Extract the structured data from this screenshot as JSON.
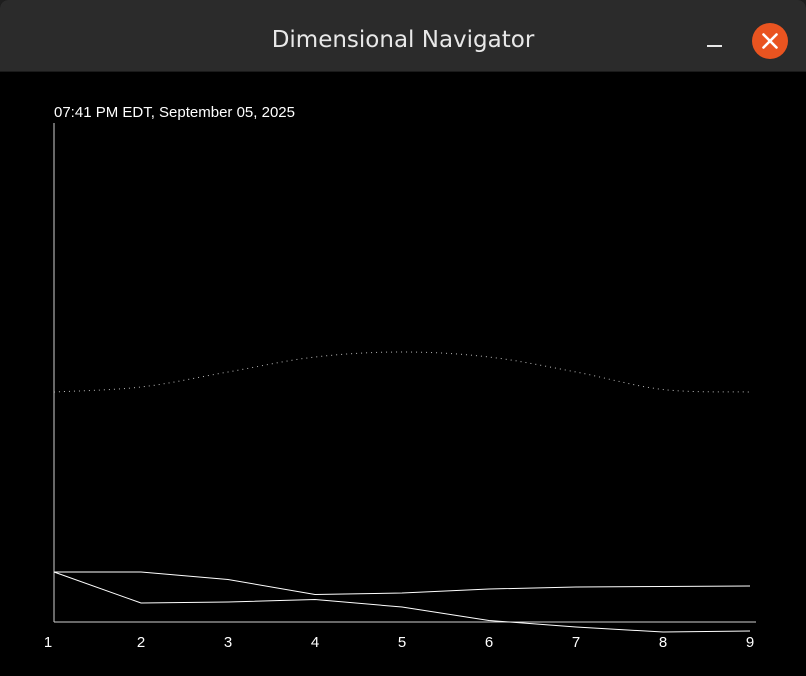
{
  "window": {
    "title": "Dimensional Navigator",
    "minimize_icon": "minimize-icon",
    "close_icon": "close-icon",
    "accent_color": "#e95420"
  },
  "chart_data": {
    "type": "line",
    "title": "07:41 PM EDT, September 05, 2025",
    "x": [
      1,
      2,
      3,
      4,
      5,
      6,
      7,
      8,
      9
    ],
    "ylim": [
      0,
      1
    ],
    "grid": false,
    "series": [
      {
        "style": "dotted",
        "color": "#bbbbbb",
        "values": [
          0.46,
          0.47,
          0.5,
          0.53,
          0.54,
          0.53,
          0.5,
          0.465,
          0.46
        ]
      },
      {
        "style": "solid",
        "color": "#ffffff",
        "values": [
          0.1,
          0.1,
          0.085,
          0.055,
          0.058,
          0.066,
          0.07,
          0.071,
          0.072
        ]
      },
      {
        "style": "solid",
        "color": "#ffffff",
        "values": [
          0.1,
          0.038,
          0.04,
          0.045,
          0.03,
          0.003,
          -0.01,
          -0.02,
          -0.018
        ]
      }
    ]
  }
}
